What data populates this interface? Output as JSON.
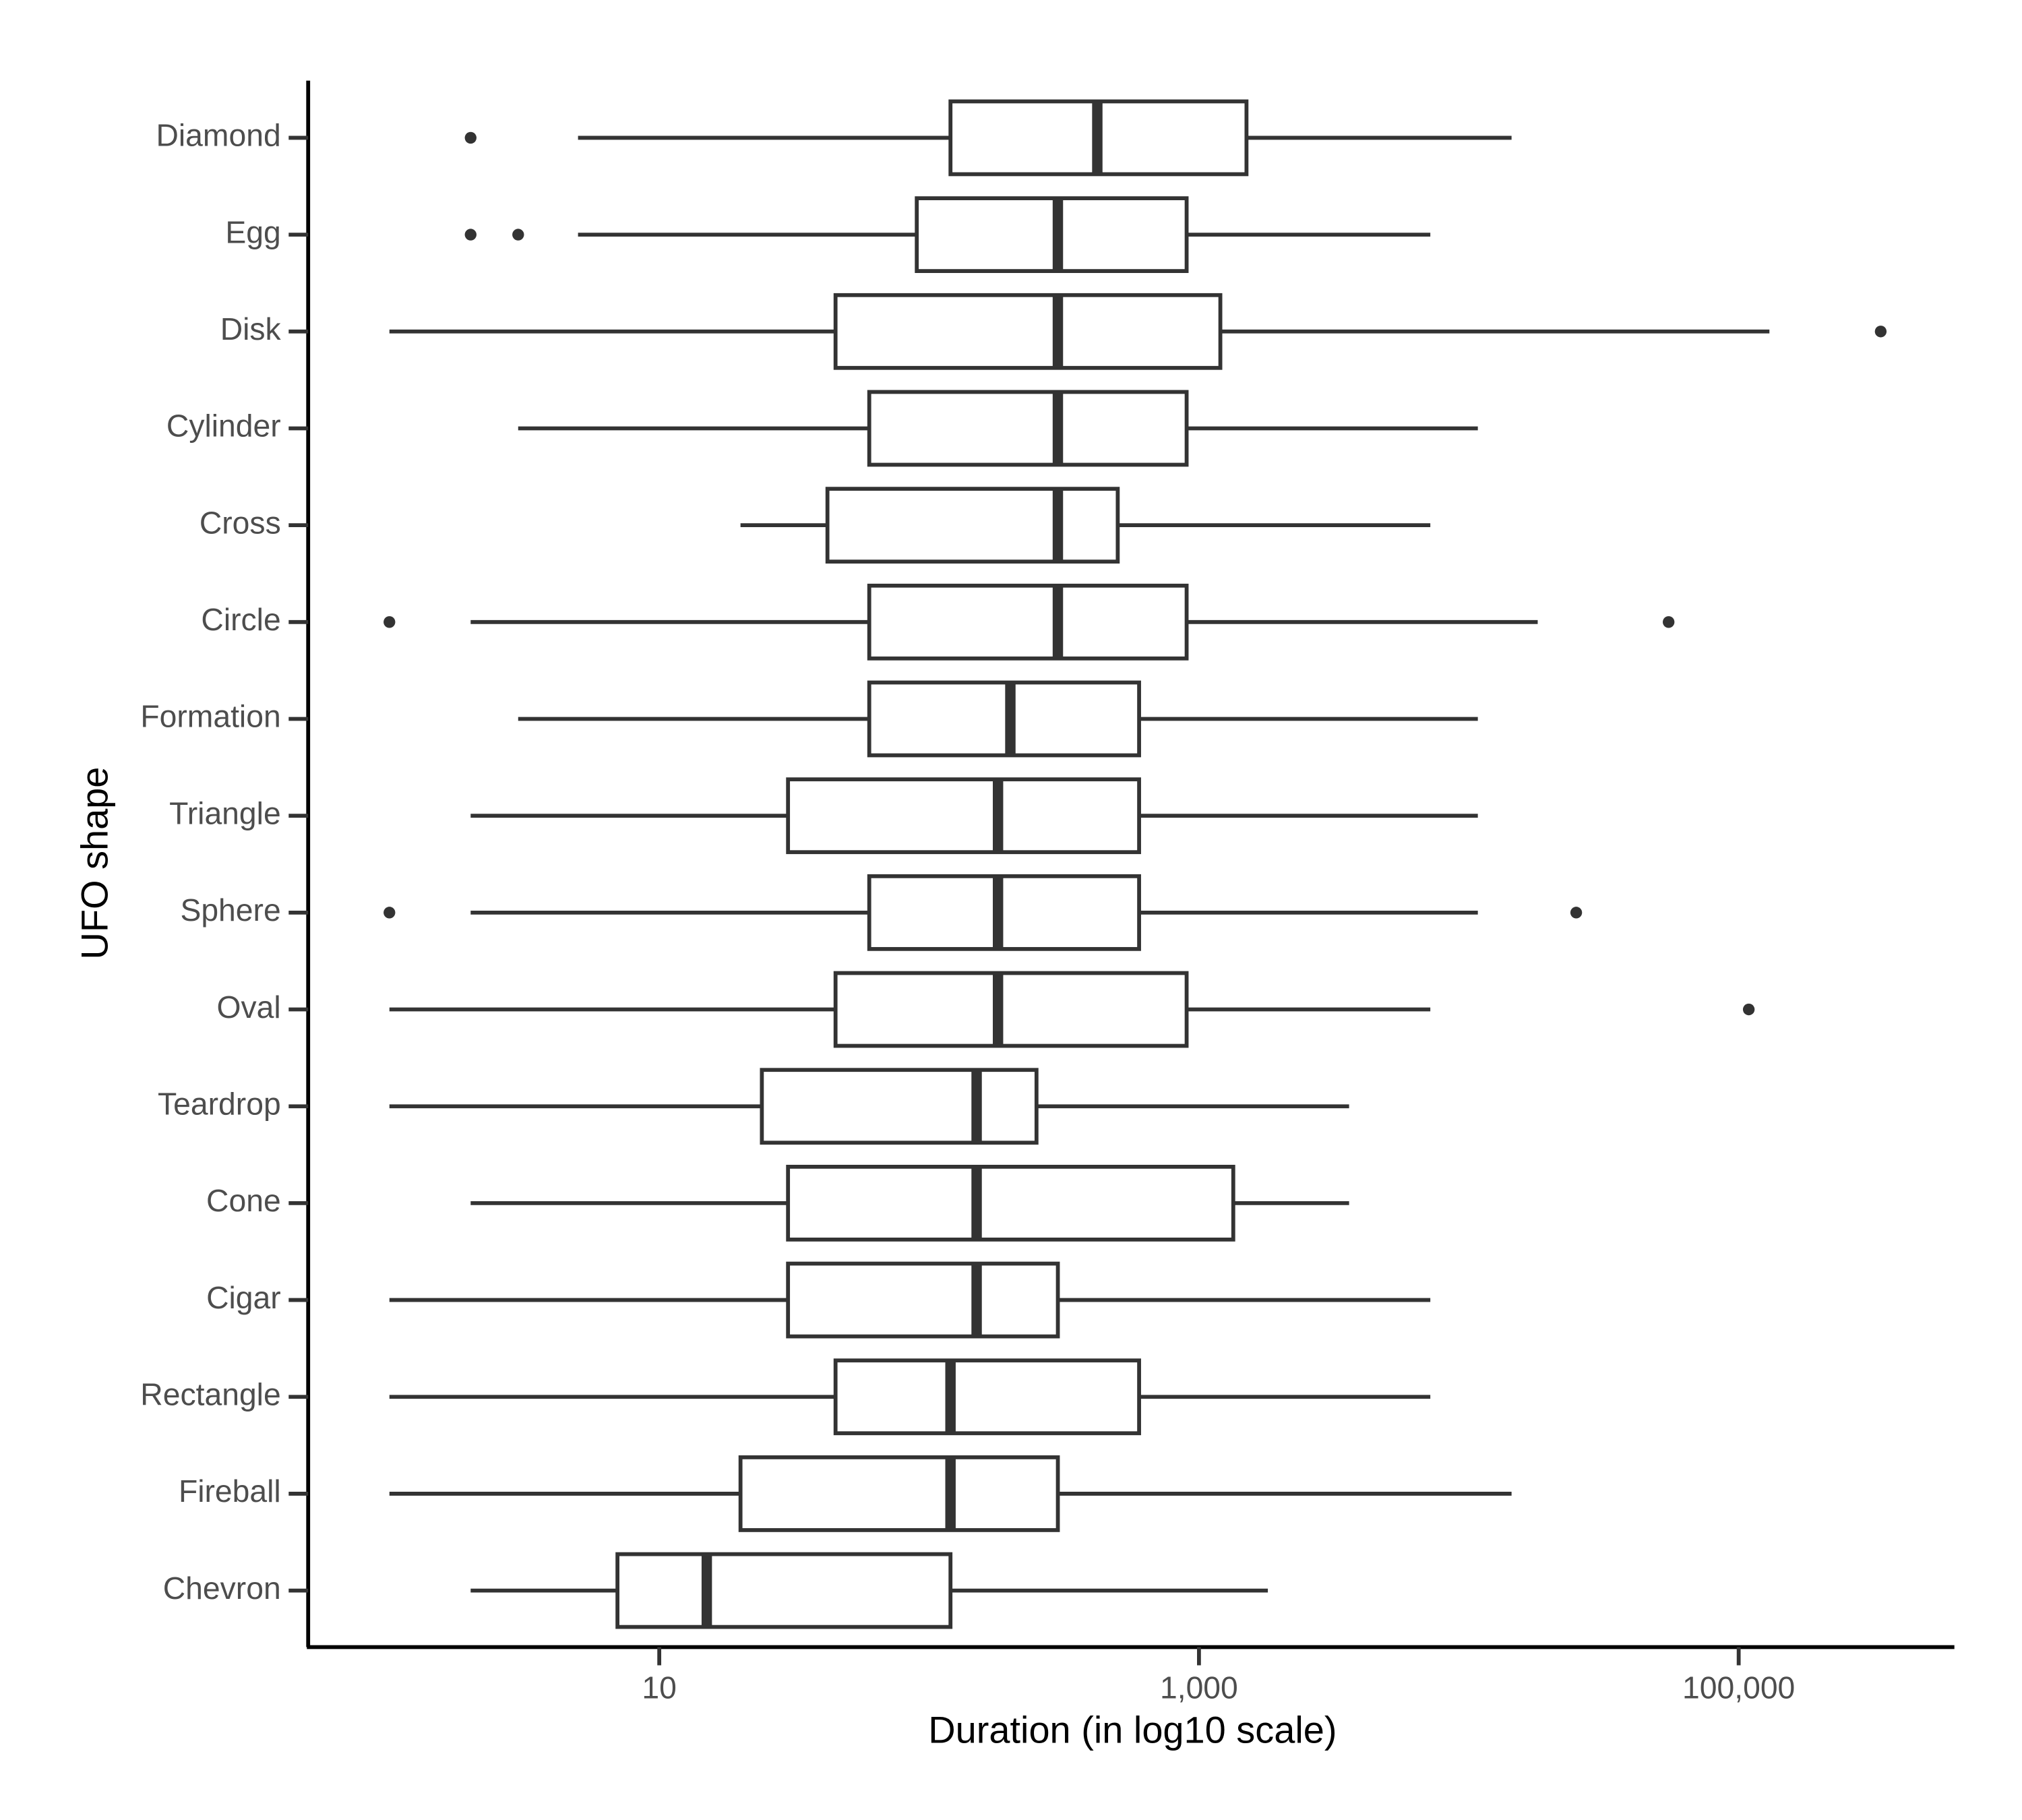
{
  "chart_data": {
    "type": "boxplot",
    "x_label": "Duration (in log10 scale)",
    "y_label": "UFO shape",
    "x_log_scale": true,
    "xlim": [
      0.5,
      630000
    ],
    "xticks": [
      10,
      {
        "value": 1000,
        "label": "1,000"
      },
      {
        "value": 100000,
        "label": "100,000"
      }
    ],
    "color": "#333333",
    "categories": [
      "Diamond",
      "Egg",
      "Disk",
      "Cylinder",
      "Cross",
      "Circle",
      "Formation",
      "Triangle",
      "Sphere",
      "Oval",
      "Teardrop",
      "Cone",
      "Cigar",
      "Rectangle",
      "Fireball",
      "Chevron"
    ],
    "whisker_low": [
      5,
      5,
      1,
      3,
      20,
      2,
      3,
      2,
      2,
      1,
      1,
      2,
      1,
      1,
      1,
      2
    ],
    "q1": [
      120,
      90,
      45,
      60,
      42,
      60,
      60,
      30,
      60,
      45,
      24,
      30,
      30,
      45,
      20,
      7
    ],
    "median": [
      420,
      300,
      300,
      300,
      300,
      300,
      200,
      180,
      180,
      180,
      150,
      150,
      150,
      120,
      120,
      15
    ],
    "q3": [
      1500,
      900,
      1200,
      900,
      500,
      900,
      600,
      600,
      600,
      900,
      250,
      1340,
      300,
      600,
      300,
      120
    ],
    "whisker_high": [
      14400,
      7200,
      130000,
      10800,
      7200,
      18000,
      10800,
      10800,
      10800,
      7200,
      3600,
      3600,
      7200,
      7200,
      14400,
      1800
    ],
    "outliers": [
      [
        2
      ],
      [
        2,
        3
      ],
      [
        336000
      ],
      [],
      [],
      [
        1,
        55000
      ],
      [],
      [],
      [
        1,
        25000
      ],
      [
        109000
      ],
      [],
      [],
      [],
      [],
      [],
      []
    ]
  }
}
